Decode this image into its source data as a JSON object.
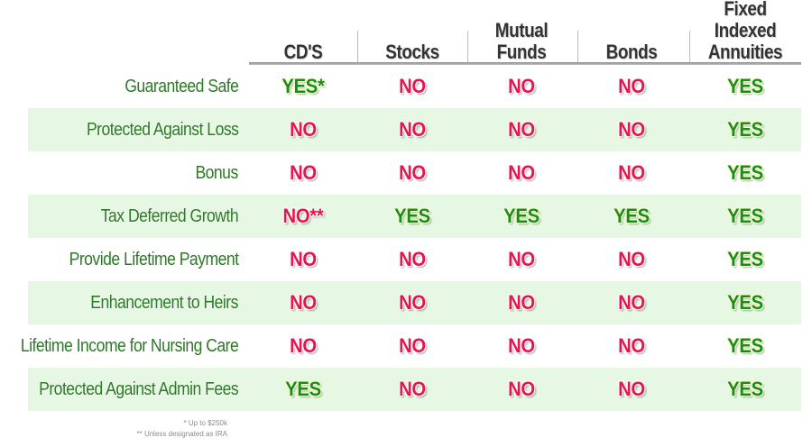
{
  "columns": [
    {
      "label": "CD'S"
    },
    {
      "label": "Stocks"
    },
    {
      "label": "Mutual\nFunds"
    },
    {
      "label": "Bonds"
    },
    {
      "label": "Fixed Indexed\nAnnuities"
    }
  ],
  "rows": [
    {
      "label": "Guaranteed Safe",
      "values": [
        "YES*",
        "NO",
        "NO",
        "NO",
        "YES"
      ]
    },
    {
      "label": "Protected Against Loss",
      "values": [
        "NO",
        "NO",
        "NO",
        "NO",
        "YES"
      ]
    },
    {
      "label": "Bonus",
      "values": [
        "NO",
        "NO",
        "NO",
        "NO",
        "YES"
      ]
    },
    {
      "label": "Tax Deferred Growth",
      "values": [
        "NO**",
        "YES",
        "YES",
        "YES",
        "YES"
      ]
    },
    {
      "label": "Provide Lifetime Payment",
      "values": [
        "NO",
        "NO",
        "NO",
        "NO",
        "YES"
      ]
    },
    {
      "label": "Enhancement to Heirs",
      "values": [
        "NO",
        "NO",
        "NO",
        "NO",
        "YES"
      ]
    },
    {
      "label": "Lifetime Income for Nursing Care",
      "values": [
        "NO",
        "NO",
        "NO",
        "NO",
        "YES"
      ]
    },
    {
      "label": "Protected Against Admin Fees",
      "values": [
        "YES",
        "NO",
        "NO",
        "NO",
        "YES"
      ]
    }
  ],
  "footnotes": [
    "* Up to $250k",
    "** Unless designated as IRA"
  ],
  "colors": {
    "label_green": "#2c7a26",
    "yes_green": "#1e8a1c",
    "no_red": "#e3174f",
    "band_green": "#e6f8e3",
    "header_text": "#333333"
  }
}
